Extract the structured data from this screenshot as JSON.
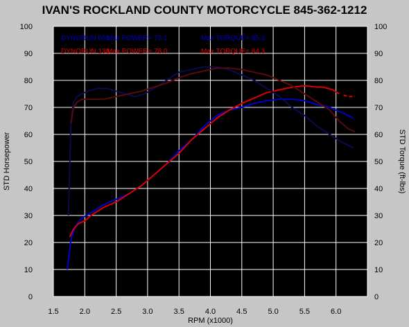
{
  "chart_data": {
    "type": "line",
    "title": "IVAN'S ROCKLAND COUNTY MOTORCYCLE 845-362-1212",
    "xlabel": "RPM (x1000)",
    "ylabel_left": "STD Horsepower",
    "ylabel_right": "STD Torque (ft-lbs)",
    "xlim": [
      1.5,
      6.5
    ],
    "ylim": [
      0,
      100
    ],
    "xticks": [
      "1.5",
      "2.0",
      "2.5",
      "3.0",
      "3.5",
      "4.0",
      "4.5",
      "5.0",
      "5.5",
      "6.0"
    ],
    "xtick_values": [
      1.5,
      2.0,
      2.5,
      3.0,
      3.5,
      4.0,
      4.5,
      5.0,
      5.5,
      6.0
    ],
    "yticks": [
      "0",
      "10",
      "20",
      "30",
      "40",
      "50",
      "60",
      "70",
      "80",
      "90",
      "100"
    ],
    "ytick_values": [
      0,
      10,
      20,
      30,
      40,
      50,
      60,
      70,
      80,
      90,
      100
    ],
    "grid": true,
    "legend": [
      {
        "run": "DYNORUN.065",
        "power": "Max POWER= 73.1",
        "torque": "Max TORQUE= 85.3",
        "color": "#0000cc"
      },
      {
        "run": "DYNORUN.138",
        "power": "Max POWER= 78.0",
        "torque": "Max TORQUE= 84.3",
        "color": "#dd0000"
      }
    ],
    "series": [
      {
        "color": "#0000cc",
        "axis": "left",
        "x": [
          1.72,
          1.78,
          1.85,
          1.95,
          2.1,
          2.3,
          2.5,
          2.7,
          2.9,
          3.1,
          3.3,
          3.5,
          3.7,
          3.9,
          4.1,
          4.3,
          4.5,
          4.7,
          4.9,
          5.1,
          5.3,
          5.5,
          5.7,
          5.9,
          6.1,
          6.28
        ],
        "y": [
          10,
          21,
          26,
          29,
          31,
          34,
          36,
          38,
          41,
          45,
          49,
          54,
          58,
          63,
          67,
          69,
          70,
          71.5,
          72.5,
          73,
          73,
          72.5,
          71,
          70,
          68,
          66
        ]
      },
      {
        "color": "#dd0000",
        "axis": "left",
        "x": [
          1.76,
          1.82,
          1.9,
          2.0,
          2.1,
          2.3,
          2.5,
          2.7,
          2.9,
          3.1,
          3.3,
          3.5,
          3.7,
          3.9,
          4.1,
          4.3,
          4.5,
          4.7,
          4.9,
          5.1,
          5.3,
          5.5,
          5.7,
          5.8,
          5.95,
          6.05
        ],
        "y": [
          22,
          25,
          27,
          28,
          30,
          33,
          35,
          38,
          41,
          45,
          49,
          53,
          58,
          62,
          66,
          69,
          71.5,
          73.5,
          75.5,
          76.5,
          77.5,
          78,
          77.5,
          77.5,
          76.5,
          75
        ]
      },
      {
        "color": "#0a0a50",
        "axis": "right",
        "x": [
          1.74,
          1.78,
          1.82,
          1.88,
          1.95,
          2.05,
          2.2,
          2.35,
          2.5,
          2.65,
          2.8,
          2.95,
          3.1,
          3.3,
          3.5,
          3.7,
          3.9,
          4.1,
          4.3,
          4.5,
          4.7,
          4.9,
          5.1,
          5.3,
          5.5,
          5.7,
          5.9,
          6.1,
          6.28
        ],
        "y": [
          30,
          65,
          72,
          74,
          75,
          76,
          77,
          77,
          76,
          75,
          74,
          75,
          77,
          80,
          83,
          84,
          85,
          85,
          84,
          82,
          80,
          77,
          74,
          70,
          67,
          63,
          60,
          57,
          55
        ]
      },
      {
        "color": "#5a0a0a",
        "axis": "right",
        "x": [
          1.78,
          1.82,
          1.88,
          1.95,
          2.1,
          2.3,
          2.5,
          2.7,
          2.9,
          3.1,
          3.3,
          3.5,
          3.7,
          3.9,
          4.1,
          4.3,
          4.5,
          4.7,
          4.9,
          5.1,
          5.3,
          5.5,
          5.7,
          5.9,
          6.05,
          6.2,
          6.3
        ],
        "y": [
          64,
          70,
          72,
          73,
          73,
          73,
          74,
          75,
          76,
          77.5,
          79,
          81,
          82.5,
          83.5,
          84.5,
          84.5,
          84,
          83,
          82,
          80,
          78,
          75,
          72,
          69,
          65,
          62,
          61
        ]
      }
    ],
    "dashed_tail": [
      {
        "color": "#dd0000",
        "x": [
          6.12,
          6.2,
          6.3
        ],
        "y": [
          74.5,
          74,
          74
        ]
      }
    ]
  }
}
